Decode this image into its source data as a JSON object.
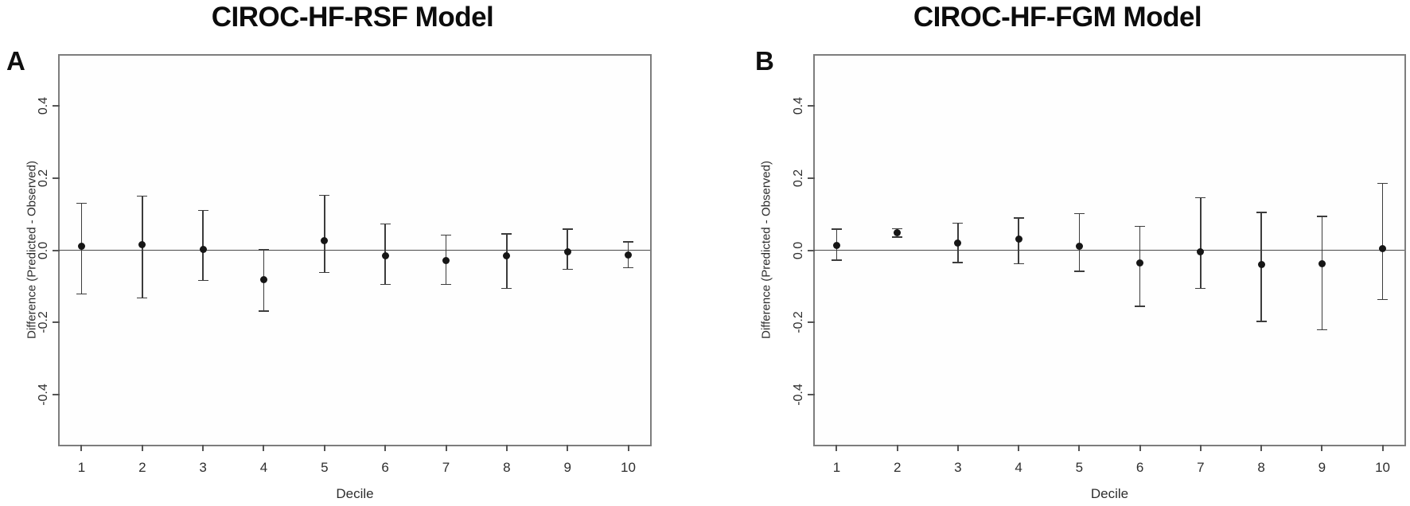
{
  "figure": {
    "background": "#ffffff",
    "description_visible_text_only": true
  },
  "colors": {
    "box_border": "#7d7d7d",
    "axis_tick": "#555555",
    "zero_line": "#4a4a4a",
    "error_bar": "#3c3c3c",
    "point": "#161616",
    "tick_text": "#2e2e2e",
    "title_text": "#0c0c0c"
  },
  "chart_data": [
    {
      "type": "scatter",
      "panel_letter": "A",
      "title": "CIROC-HF-RSF Model",
      "xlabel": "Decile",
      "ylabel": "Difference (Predicted - Observed)",
      "marker": "filled-circle",
      "error_bars": "whiskers with end caps (confidence intervals)",
      "grid": false,
      "legend": null,
      "zero_line": 0.0,
      "xlim": [
        0.64,
        10.36
      ],
      "ylim": [
        -0.54,
        0.54
      ],
      "x": [
        1,
        2,
        3,
        4,
        5,
        6,
        7,
        8,
        9,
        10
      ],
      "xtick_labels": [
        "1",
        "2",
        "3",
        "4",
        "5",
        "6",
        "7",
        "8",
        "9",
        "10"
      ],
      "yticks": [
        -0.4,
        -0.2,
        0.0,
        0.2,
        0.4
      ],
      "ytick_labels": [
        "-0.4",
        "-0.2",
        "0.0",
        "0.2",
        "0.4"
      ],
      "y": [
        0.012,
        0.016,
        0.003,
        -0.081,
        0.027,
        -0.016,
        -0.028,
        -0.015,
        -0.004,
        -0.014
      ],
      "ci_low": [
        -0.121,
        -0.133,
        -0.084,
        -0.169,
        -0.062,
        -0.095,
        -0.095,
        -0.106,
        -0.053,
        -0.049
      ],
      "ci_high": [
        0.13,
        0.15,
        0.11,
        0.001,
        0.152,
        0.073,
        0.042,
        0.045,
        0.059,
        0.023
      ]
    },
    {
      "type": "scatter",
      "panel_letter": "B",
      "title": "CIROC-HF-FGM Model",
      "xlabel": "Decile",
      "ylabel": "Difference (Predicted - Observed)",
      "marker": "filled-circle",
      "error_bars": "whiskers with end caps (confidence intervals)",
      "grid": false,
      "legend": null,
      "zero_line": 0.0,
      "xlim": [
        0.64,
        10.36
      ],
      "ylim": [
        -0.54,
        0.54
      ],
      "x": [
        1,
        2,
        3,
        4,
        5,
        6,
        7,
        8,
        9,
        10
      ],
      "xtick_labels": [
        "1",
        "2",
        "3",
        "4",
        "5",
        "6",
        "7",
        "8",
        "9",
        "10"
      ],
      "yticks": [
        -0.4,
        -0.2,
        0.0,
        0.2,
        0.4
      ],
      "ytick_labels": [
        "-0.4",
        "-0.2",
        "0.0",
        "0.2",
        "0.4"
      ],
      "y": [
        0.013,
        0.048,
        0.02,
        0.03,
        0.011,
        -0.036,
        -0.005,
        -0.04,
        -0.038,
        0.004
      ],
      "ci_low": [
        -0.028,
        0.036,
        -0.034,
        -0.038,
        -0.059,
        -0.156,
        -0.106,
        -0.198,
        -0.221,
        -0.137
      ],
      "ci_high": [
        0.059,
        0.06,
        0.075,
        0.089,
        0.102,
        0.066,
        0.146,
        0.105,
        0.094,
        0.185
      ]
    }
  ]
}
